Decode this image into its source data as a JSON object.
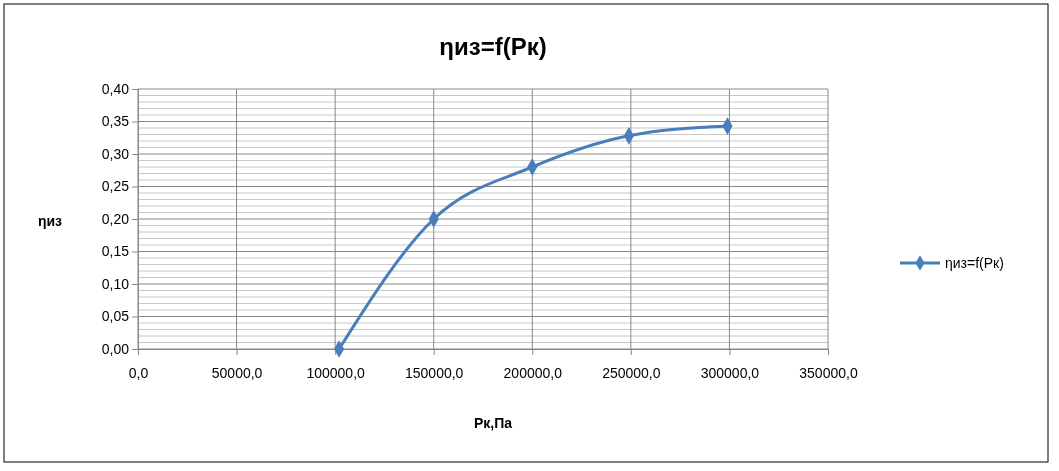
{
  "chart_data": {
    "type": "line",
    "title": "ηиз=f(Рк)",
    "xlabel": "Рк,Па",
    "ylabel": "ηиз",
    "x": [
      102000,
      150000,
      200000,
      249000,
      299000
    ],
    "series": [
      {
        "name": "ηиз=f(Рк)",
        "color": "#4a7ebb",
        "values": [
          0.0,
          0.2,
          0.28,
          0.328,
          0.343
        ]
      }
    ],
    "xlim": [
      0,
      350000
    ],
    "xticks": [
      {
        "value": 0,
        "label": "0,0"
      },
      {
        "value": 50000,
        "label": "50000,0"
      },
      {
        "value": 100000,
        "label": "100000,0"
      },
      {
        "value": 150000,
        "label": "150000,0"
      },
      {
        "value": 200000,
        "label": "200000,0"
      },
      {
        "value": 250000,
        "label": "250000,0"
      },
      {
        "value": 300000,
        "label": "300000,0"
      },
      {
        "value": 350000,
        "label": "350000,0"
      }
    ],
    "ylim": [
      0,
      0.4
    ],
    "yticks": [
      {
        "value": 0,
        "label": "0,00"
      },
      {
        "value": 0.01,
        "label": null
      },
      {
        "value": 0.02,
        "label": null
      },
      {
        "value": 0.03,
        "label": null
      },
      {
        "value": 0.04,
        "label": null
      },
      {
        "value": 0.05,
        "label": "0,05"
      },
      {
        "value": 0.06,
        "label": null
      },
      {
        "value": 0.07,
        "label": null
      },
      {
        "value": 0.08,
        "label": null
      },
      {
        "value": 0.09,
        "label": null
      },
      {
        "value": 0.1,
        "label": "0,10"
      },
      {
        "value": 0.11,
        "label": null
      },
      {
        "value": 0.12,
        "label": null
      },
      {
        "value": 0.13,
        "label": null
      },
      {
        "value": 0.14,
        "label": null
      },
      {
        "value": 0.15,
        "label": "0,15"
      },
      {
        "value": 0.16,
        "label": null
      },
      {
        "value": 0.17,
        "label": null
      },
      {
        "value": 0.18,
        "label": null
      },
      {
        "value": 0.19,
        "label": null
      },
      {
        "value": 0.2,
        "label": "0,20"
      },
      {
        "value": 0.21,
        "label": null
      },
      {
        "value": 0.22,
        "label": null
      },
      {
        "value": 0.23,
        "label": null
      },
      {
        "value": 0.24,
        "label": null
      },
      {
        "value": 0.25,
        "label": "0,25"
      },
      {
        "value": 0.26,
        "label": null
      },
      {
        "value": 0.27,
        "label": null
      },
      {
        "value": 0.28,
        "label": null
      },
      {
        "value": 0.29,
        "label": null
      },
      {
        "value": 0.3,
        "label": "0,30"
      },
      {
        "value": 0.31,
        "label": null
      },
      {
        "value": 0.32,
        "label": null
      },
      {
        "value": 0.33,
        "label": null
      },
      {
        "value": 0.34,
        "label": null
      },
      {
        "value": 0.35,
        "label": "0,35"
      },
      {
        "value": 0.36,
        "label": null
      },
      {
        "value": 0.37,
        "label": null
      },
      {
        "value": 0.38,
        "label": null
      },
      {
        "value": 0.39,
        "label": null
      },
      {
        "value": 0.4,
        "label": "0,40"
      }
    ],
    "grid": true,
    "legend": "right",
    "marker": "diamond",
    "line_style": "solid"
  }
}
